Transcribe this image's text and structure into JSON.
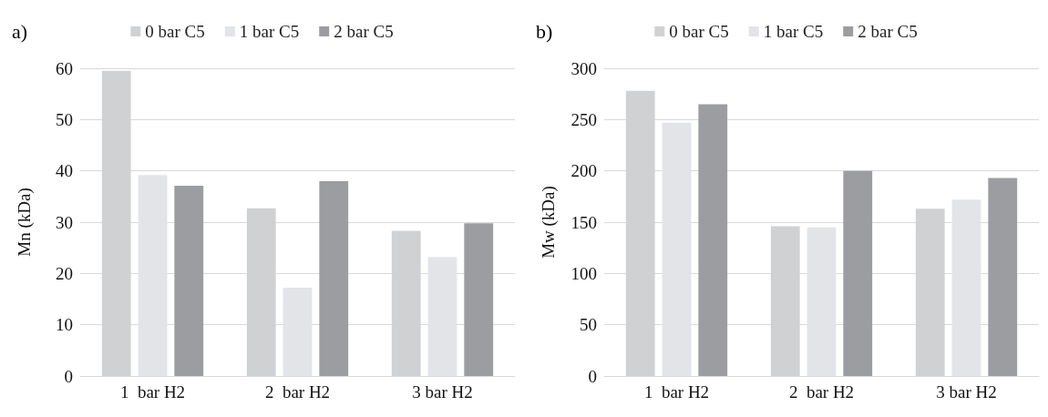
{
  "chart_data": [
    {
      "type": "bar",
      "title": "a)",
      "ylabel": "Mn (kDa)",
      "categories": [
        "1  bar H2",
        "2  bar H2",
        "3 bar H2"
      ],
      "series": [
        {
          "name": "0 bar C5",
          "color": "#d0d1d3",
          "values": [
            59.5,
            32.7,
            28.3
          ]
        },
        {
          "name": "1 bar C5",
          "color": "#e2e4e8",
          "values": [
            39.2,
            17.2,
            23.2
          ]
        },
        {
          "name": "2 bar C5",
          "color": "#9c9da0",
          "values": [
            37.1,
            38.0,
            29.8
          ]
        }
      ],
      "ylim": [
        0,
        60
      ],
      "yticks": [
        0,
        10,
        20,
        30,
        40,
        50,
        60
      ],
      "grid": "y",
      "legend": "top"
    },
    {
      "type": "bar",
      "title": "b)",
      "ylabel": "Mw (kDa)",
      "categories": [
        "1  bar H2",
        "2  bar H2",
        "3 bar H2"
      ],
      "series": [
        {
          "name": "0 bar C5",
          "color": "#d0d1d3",
          "values": [
            278,
            146,
            163
          ]
        },
        {
          "name": "1 bar C5",
          "color": "#e2e4e8",
          "values": [
            247,
            145,
            172
          ]
        },
        {
          "name": "2 bar C5",
          "color": "#9c9da0",
          "values": [
            265,
            200,
            193
          ]
        }
      ],
      "ylim": [
        0,
        300
      ],
      "yticks": [
        0,
        50,
        100,
        150,
        200,
        250,
        300
      ],
      "grid": "y",
      "legend": "top"
    }
  ]
}
